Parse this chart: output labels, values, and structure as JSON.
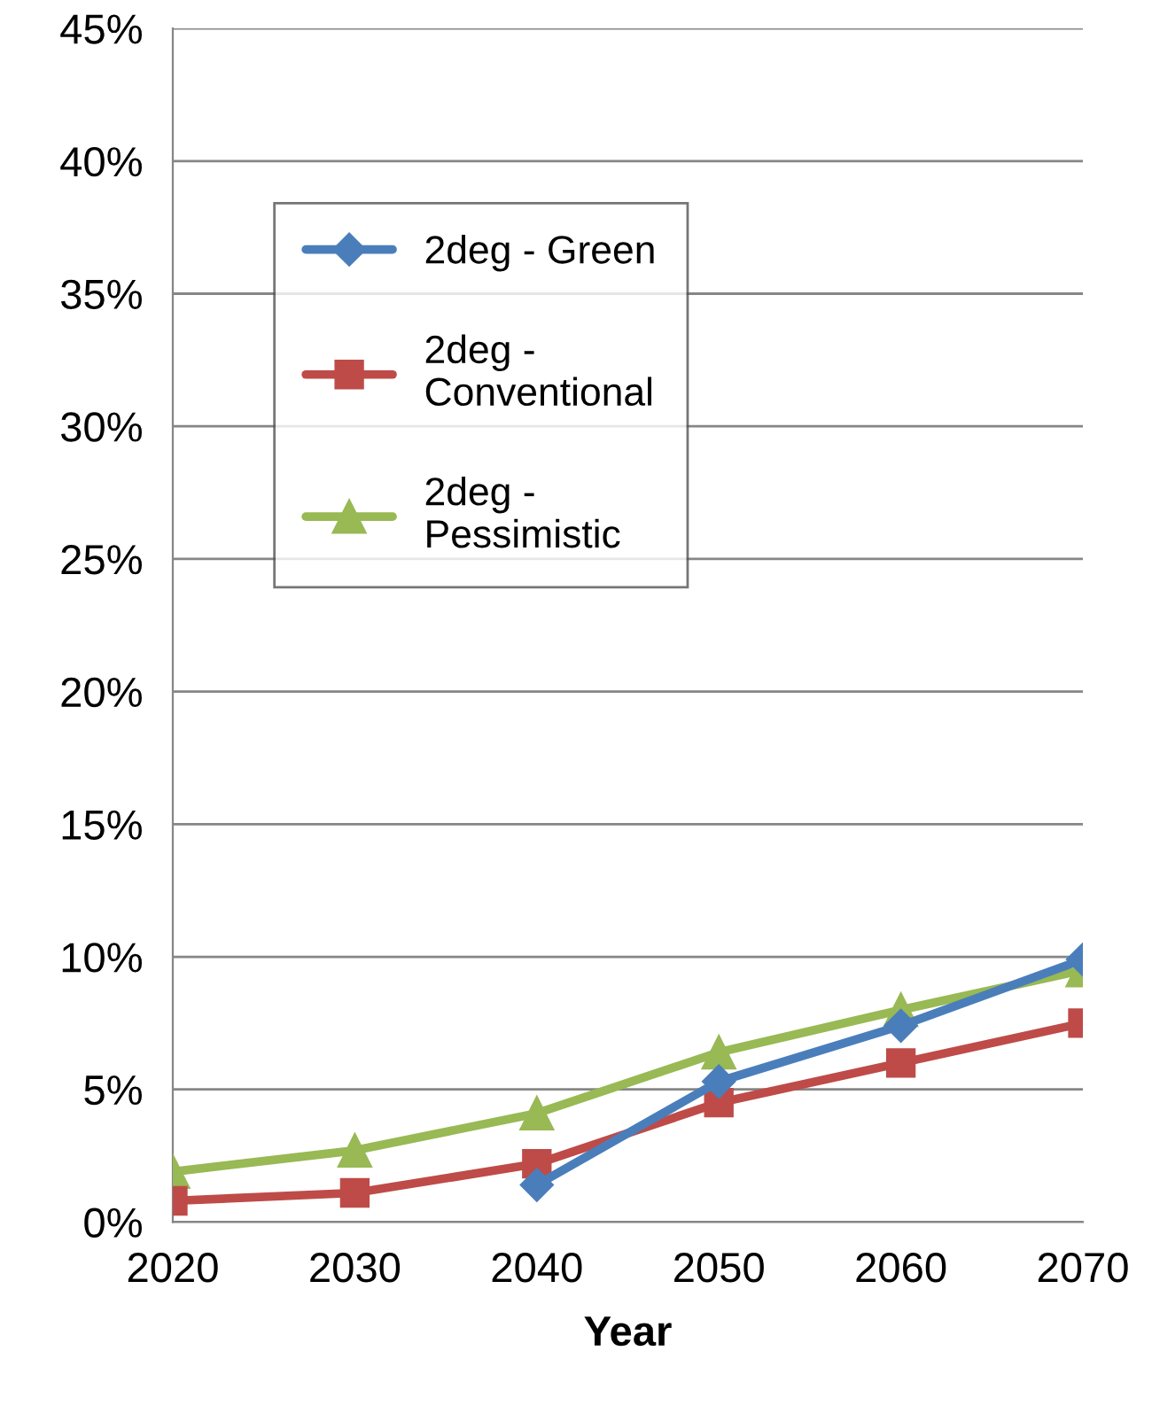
{
  "chart_data": {
    "type": "line",
    "xlabel": "Year",
    "x": [
      2020,
      2030,
      2040,
      2050,
      2060,
      2070
    ],
    "series": [
      {
        "name": "2deg - Green",
        "color": "#4a7ebb",
        "marker": "diamond",
        "values": [
          null,
          null,
          1.4,
          5.3,
          7.4,
          9.9
        ]
      },
      {
        "name": "2deg - Conventional",
        "color": "#be4b48",
        "marker": "square",
        "values": [
          0.8,
          1.1,
          2.2,
          4.5,
          6.0,
          7.5
        ]
      },
      {
        "name": "2deg - Pessimistic",
        "color": "#98b954",
        "marker": "triangle",
        "values": [
          1.9,
          2.7,
          4.1,
          6.4,
          8.0,
          9.5
        ]
      }
    ],
    "xlim": [
      2020,
      2070
    ],
    "xticks": [
      2020,
      2030,
      2040,
      2050,
      2060,
      2070
    ],
    "ylim": [
      0,
      45
    ],
    "yticks": [
      {
        "value": 0,
        "label": "0%"
      },
      {
        "value": 5,
        "label": "5%"
      },
      {
        "value": 10,
        "label": "10%"
      },
      {
        "value": 15,
        "label": "15%"
      },
      {
        "value": 20,
        "label": "20%"
      },
      {
        "value": 25,
        "label": "25%"
      },
      {
        "value": 30,
        "label": "30%"
      },
      {
        "value": 35,
        "label": "35%"
      },
      {
        "value": 40,
        "label": "40%"
      },
      {
        "value": 45,
        "label": "45%"
      }
    ],
    "grid": "y",
    "legend": "top left",
    "line_style": "solid"
  }
}
